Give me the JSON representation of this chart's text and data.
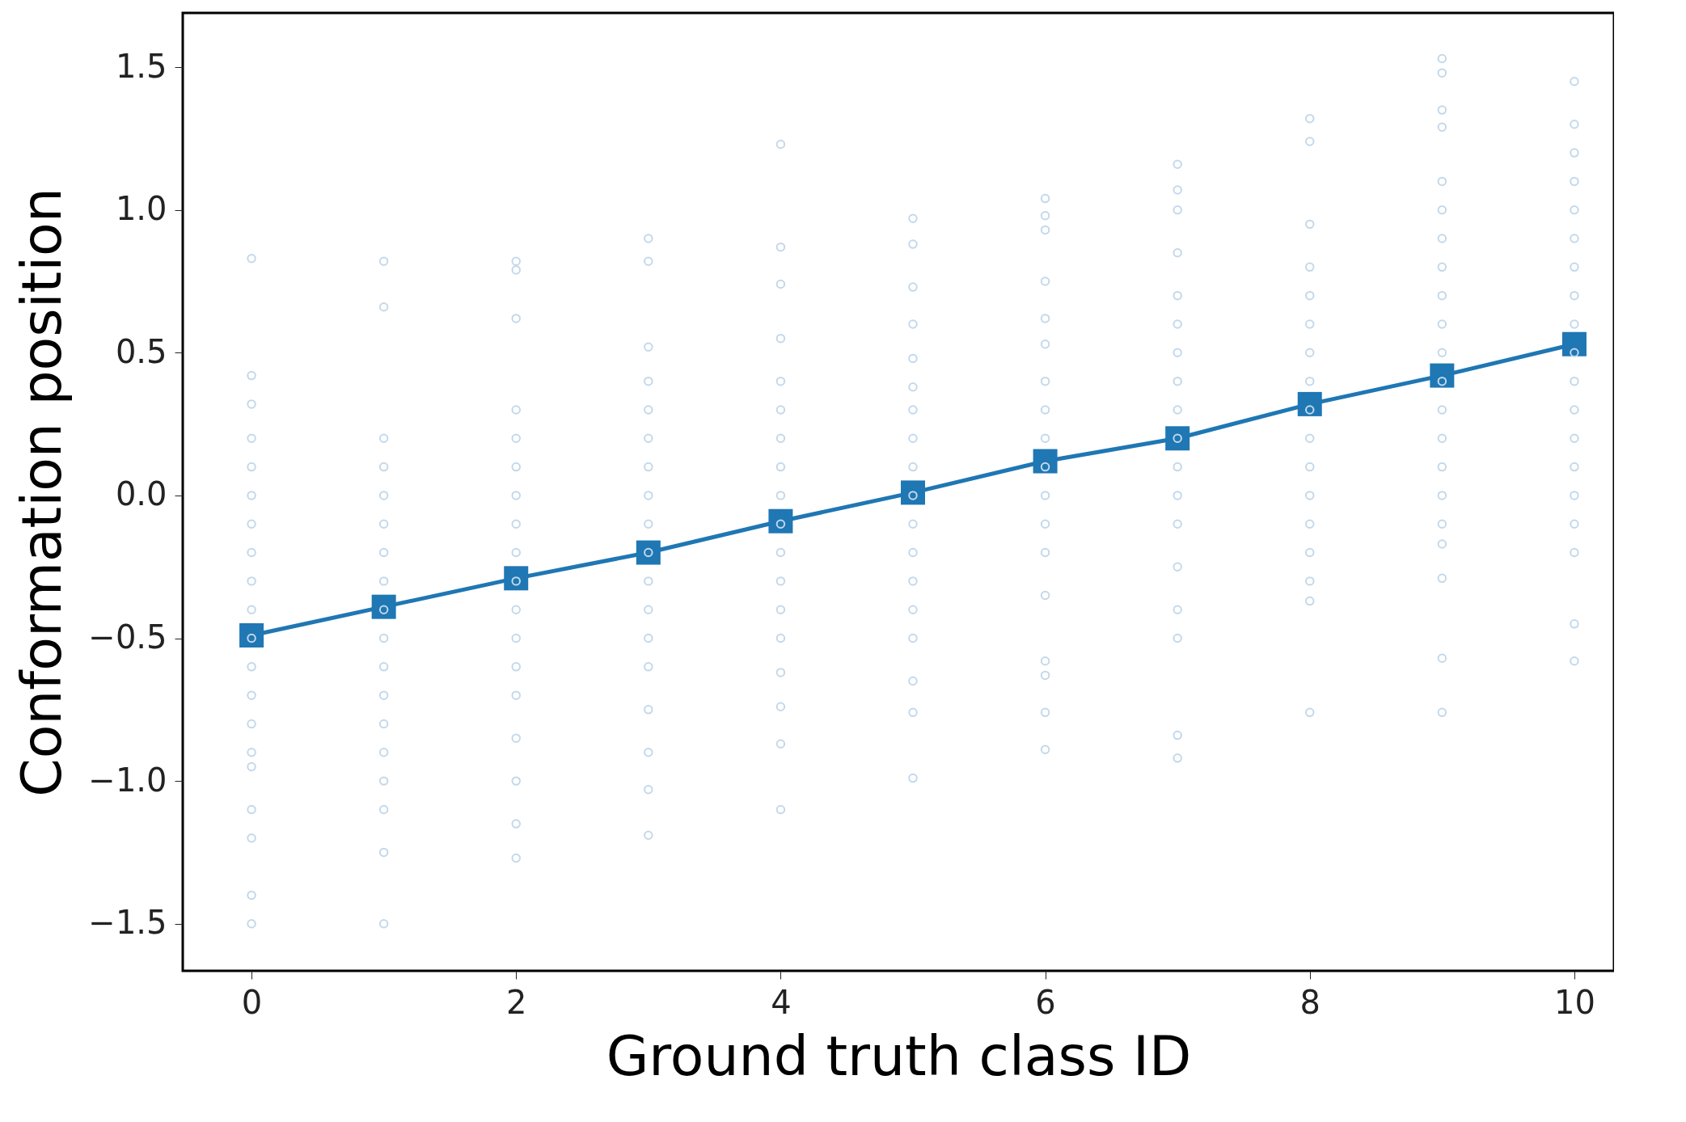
{
  "chart_data": {
    "type": "scatter",
    "xlabel": "Ground truth class ID",
    "ylabel": "Conformation position",
    "xlim": [
      -0.52,
      10.3
    ],
    "ylim": [
      -1.665,
      1.69
    ],
    "xticks": [
      0,
      2,
      4,
      6,
      8,
      10
    ],
    "yticks": [
      {
        "value": -1.5,
        "label": "−1.5"
      },
      {
        "value": -1.0,
        "label": "−1.0"
      },
      {
        "value": -0.5,
        "label": "−0.5"
      },
      {
        "value": 0.0,
        "label": "0.0"
      },
      {
        "value": 0.5,
        "label": "0.5"
      },
      {
        "value": 1.0,
        "label": "1.0"
      },
      {
        "value": 1.5,
        "label": "1.5"
      }
    ],
    "grid": false,
    "legend": false,
    "series": [
      {
        "color": "#c3d8ea",
        "marker": "circle",
        "x": [
          0,
          0,
          0,
          0,
          0,
          0,
          0,
          0,
          0,
          0,
          0,
          0,
          0,
          0,
          0,
          0,
          0,
          0,
          0,
          0,
          1,
          1,
          1,
          1,
          1,
          1,
          1,
          1,
          1,
          1,
          1,
          1,
          1,
          1,
          1,
          1,
          1,
          1,
          2,
          2,
          2,
          2,
          2,
          2,
          2,
          2,
          2,
          2,
          2,
          2,
          2,
          2,
          2,
          2,
          2,
          2,
          3,
          3,
          3,
          3,
          3,
          3,
          3,
          3,
          3,
          3,
          3,
          3,
          3,
          3,
          3,
          3,
          3,
          3,
          4,
          4,
          4,
          4,
          4,
          4,
          4,
          4,
          4,
          4,
          4,
          4,
          4,
          4,
          4,
          4,
          4,
          4,
          5,
          5,
          5,
          5,
          5,
          5,
          5,
          5,
          5,
          5,
          5,
          5,
          5,
          5,
          5,
          5,
          5,
          5,
          6,
          6,
          6,
          6,
          6,
          6,
          6,
          6,
          6,
          6,
          6,
          6,
          6,
          6,
          6,
          6,
          6,
          6,
          7,
          7,
          7,
          7,
          7,
          7,
          7,
          7,
          7,
          7,
          7,
          7,
          7,
          7,
          7,
          7,
          7,
          7,
          8,
          8,
          8,
          8,
          8,
          8,
          8,
          8,
          8,
          8,
          8,
          8,
          8,
          8,
          8,
          8,
          8,
          9,
          9,
          9,
          9,
          9,
          9,
          9,
          9,
          9,
          9,
          9,
          9,
          9,
          9,
          9,
          9,
          9,
          9,
          9,
          9,
          9,
          10,
          10,
          10,
          10,
          10,
          10,
          10,
          10,
          10,
          10,
          10,
          10,
          10,
          10,
          10,
          10,
          10,
          10,
          10
        ],
        "values": [
          0.83,
          0.42,
          0.32,
          0.2,
          0.1,
          0.0,
          -0.1,
          -0.2,
          -0.3,
          -0.4,
          -0.5,
          -0.6,
          -0.7,
          -0.8,
          -0.9,
          -0.95,
          -1.1,
          -1.2,
          -1.4,
          -1.5,
          0.82,
          0.66,
          0.2,
          0.1,
          0.0,
          -0.1,
          -0.2,
          -0.3,
          -0.4,
          -0.5,
          -0.6,
          -0.7,
          -0.8,
          -0.9,
          -1.0,
          -1.1,
          -1.25,
          -1.5,
          0.82,
          0.79,
          0.62,
          0.3,
          0.2,
          0.1,
          0.0,
          -0.1,
          -0.2,
          -0.3,
          -0.4,
          -0.5,
          -0.6,
          -0.7,
          -0.85,
          -1.0,
          -1.15,
          -1.27,
          0.9,
          0.82,
          0.52,
          0.4,
          0.3,
          0.2,
          0.1,
          0.0,
          -0.1,
          -0.2,
          -0.3,
          -0.4,
          -0.5,
          -0.6,
          -0.75,
          -0.9,
          -1.03,
          -1.19,
          1.23,
          0.87,
          0.74,
          0.55,
          0.4,
          0.3,
          0.2,
          0.1,
          0.0,
          -0.1,
          -0.2,
          -0.3,
          -0.4,
          -0.5,
          -0.62,
          -0.74,
          -0.87,
          -1.1,
          0.97,
          0.88,
          0.73,
          0.6,
          0.48,
          0.38,
          0.3,
          0.2,
          0.1,
          0.0,
          -0.1,
          -0.2,
          -0.3,
          -0.4,
          -0.5,
          -0.65,
          -0.76,
          -0.99,
          1.04,
          0.98,
          0.93,
          0.75,
          0.62,
          0.53,
          0.4,
          0.3,
          0.2,
          0.1,
          0.0,
          -0.1,
          -0.2,
          -0.35,
          -0.58,
          -0.63,
          -0.76,
          -0.89,
          1.16,
          1.07,
          1.0,
          0.85,
          0.7,
          0.6,
          0.5,
          0.4,
          0.3,
          0.2,
          0.1,
          0.0,
          -0.1,
          -0.25,
          -0.4,
          -0.5,
          -0.84,
          -0.92,
          1.32,
          1.24,
          0.95,
          0.8,
          0.7,
          0.6,
          0.5,
          0.4,
          0.3,
          0.2,
          0.1,
          0.0,
          -0.1,
          -0.2,
          -0.3,
          -0.37,
          -0.76,
          1.53,
          1.48,
          1.35,
          1.29,
          1.1,
          1.0,
          0.9,
          0.8,
          0.7,
          0.6,
          0.5,
          0.4,
          0.3,
          0.2,
          0.1,
          0.0,
          -0.1,
          -0.17,
          -0.29,
          -0.57,
          -0.76,
          1.45,
          1.3,
          1.2,
          1.1,
          1.0,
          0.9,
          0.8,
          0.7,
          0.6,
          0.5,
          0.4,
          0.3,
          0.2,
          0.1,
          0.0,
          -0.1,
          -0.2,
          -0.45,
          -0.58
        ]
      },
      {
        "type": "line",
        "color": "#1f77b4",
        "marker": "square",
        "line_style": "solid",
        "x": [
          0,
          1,
          2,
          3,
          4,
          5,
          6,
          7,
          8,
          9,
          10
        ],
        "values": [
          -0.49,
          -0.39,
          -0.29,
          -0.2,
          -0.09,
          0.01,
          0.12,
          0.2,
          0.32,
          0.42,
          0.53
        ]
      }
    ]
  }
}
